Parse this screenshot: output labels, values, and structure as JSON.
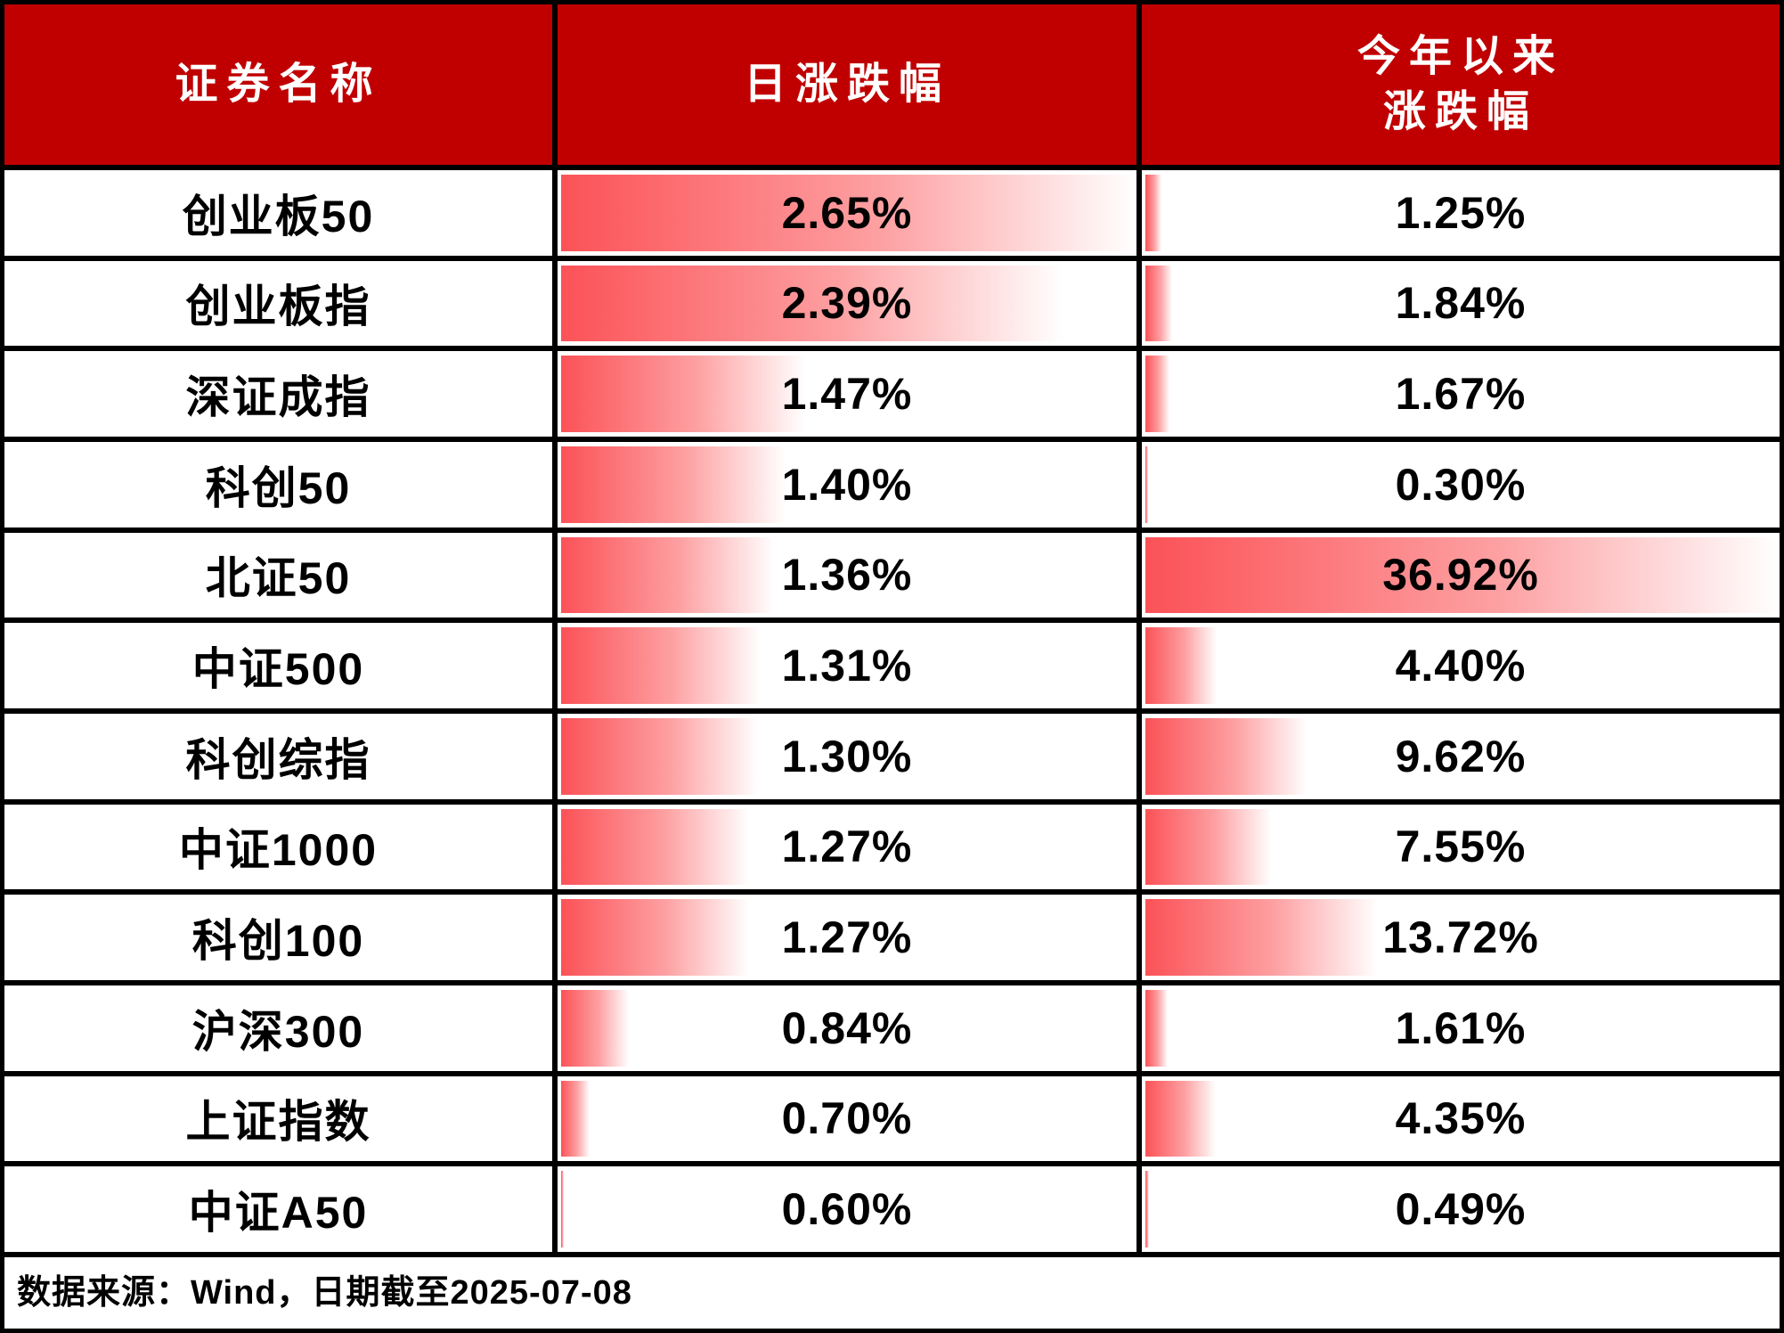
{
  "colors": {
    "header_bg": "#c00000",
    "header_text": "#ffffff",
    "bar_red_start": "#fb5257",
    "bar_red_mid": "#fd9fa1",
    "bar_fade_end": "#ffffff",
    "body_text": "#000000",
    "border": "#000000"
  },
  "table": {
    "header": {
      "col_name": "证券名称",
      "col_daily": "日涨跌幅",
      "col_ytd_line1": "今年以来",
      "col_ytd_line2": "涨跌幅"
    },
    "rows": [
      {
        "name": "创业板50",
        "daily_label": "2.65%",
        "daily": 2.65,
        "ytd_label": "1.25%",
        "ytd": 1.25
      },
      {
        "name": "创业板指",
        "daily_label": "2.39%",
        "daily": 2.39,
        "ytd_label": "1.84%",
        "ytd": 1.84
      },
      {
        "name": "深证成指",
        "daily_label": "1.47%",
        "daily": 1.47,
        "ytd_label": "1.67%",
        "ytd": 1.67
      },
      {
        "name": "科创50",
        "daily_label": "1.40%",
        "daily": 1.4,
        "ytd_label": "0.30%",
        "ytd": 0.3
      },
      {
        "name": "北证50",
        "daily_label": "1.36%",
        "daily": 1.36,
        "ytd_label": "36.92%",
        "ytd": 36.92
      },
      {
        "name": "中证500",
        "daily_label": "1.31%",
        "daily": 1.31,
        "ytd_label": "4.40%",
        "ytd": 4.4
      },
      {
        "name": "科创综指",
        "daily_label": "1.30%",
        "daily": 1.3,
        "ytd_label": "9.62%",
        "ytd": 9.62
      },
      {
        "name": "中证1000",
        "daily_label": "1.27%",
        "daily": 1.27,
        "ytd_label": "7.55%",
        "ytd": 7.55
      },
      {
        "name": "科创100",
        "daily_label": "1.27%",
        "daily": 1.27,
        "ytd_label": "13.72%",
        "ytd": 13.72
      },
      {
        "name": "沪深300",
        "daily_label": "0.84%",
        "daily": 0.84,
        "ytd_label": "1.61%",
        "ytd": 1.61
      },
      {
        "name": "上证指数",
        "daily_label": "0.70%",
        "daily": 0.7,
        "ytd_label": "4.35%",
        "ytd": 4.35
      },
      {
        "name": "中证A50",
        "daily_label": "0.60%",
        "daily": 0.6,
        "ytd_label": "0.49%",
        "ytd": 0.49
      }
    ],
    "footer_note": "数据来源：Wind，日期截至2025-07-08"
  },
  "chart_data": {
    "type": "table",
    "title": "",
    "columns": [
      "证券名称",
      "日涨跌幅",
      "今年以来涨跌幅"
    ],
    "categories": [
      "创业板50",
      "创业板指",
      "深证成指",
      "科创50",
      "北证50",
      "中证500",
      "科创综指",
      "中证1000",
      "科创100",
      "沪深300",
      "上证指数",
      "中证A50"
    ],
    "series": [
      {
        "name": "日涨跌幅",
        "unit": "%",
        "values": [
          2.65,
          2.39,
          1.47,
          1.4,
          1.36,
          1.31,
          1.3,
          1.27,
          1.27,
          0.84,
          0.7,
          0.6
        ]
      },
      {
        "name": "今年以来涨跌幅",
        "unit": "%",
        "values": [
          1.25,
          1.84,
          1.67,
          0.3,
          36.92,
          4.4,
          9.62,
          7.55,
          13.72,
          1.61,
          4.35,
          0.49
        ]
      }
    ],
    "bar_style": "red gradient data bars, length scaled min-max within each column",
    "source": "数据来源：Wind，日期截至2025-07-08"
  }
}
